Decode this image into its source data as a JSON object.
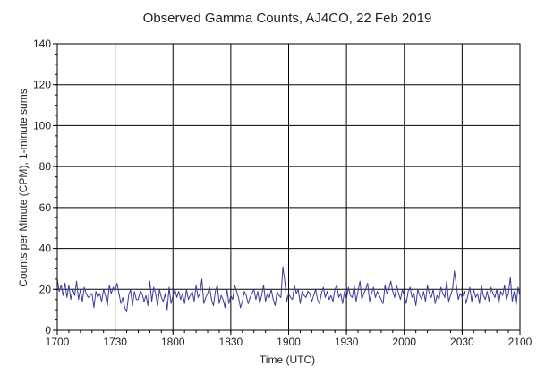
{
  "chart_data": {
    "type": "line",
    "title": "Observed Gamma Counts, AJ4CO, 22 Feb 2019",
    "xlabel": "Time (UTC)",
    "ylabel": "Counts per Minute (CPM), 1-minute sums",
    "xlim": [
      0,
      240
    ],
    "ylim": [
      0,
      140
    ],
    "x_ticks": [
      {
        "x": 0,
        "label": "1700"
      },
      {
        "x": 30,
        "label": "1730"
      },
      {
        "x": 60,
        "label": "1800"
      },
      {
        "x": 90,
        "label": "1830"
      },
      {
        "x": 120,
        "label": "1900"
      },
      {
        "x": 150,
        "label": "1930"
      },
      {
        "x": 180,
        "label": "2000"
      },
      {
        "x": 210,
        "label": "2030"
      },
      {
        "x": 240,
        "label": "2100"
      }
    ],
    "y_ticks": [
      0,
      20,
      40,
      60,
      80,
      100,
      120,
      140
    ],
    "grid": true,
    "colors": {
      "series": "#3a3a9c",
      "grid": "#000000",
      "minor_tick": "#000000"
    },
    "series": [
      {
        "values": [
          25,
          19,
          22,
          17,
          23,
          16,
          22,
          15,
          20,
          17,
          24,
          15,
          20,
          14,
          21,
          18,
          16,
          17,
          18,
          11,
          19,
          16,
          18,
          14,
          20,
          17,
          12,
          22,
          18,
          21,
          19,
          23,
          18,
          13,
          16,
          11,
          9,
          17,
          20,
          12,
          19,
          15,
          15,
          19,
          18,
          14,
          17,
          12,
          24,
          14,
          21,
          18,
          12,
          20,
          16,
          14,
          18,
          10,
          21,
          13,
          17,
          20,
          16,
          19,
          15,
          18,
          13,
          20,
          15,
          17,
          19,
          14,
          22,
          16,
          18,
          25,
          13,
          16,
          18,
          21,
          15,
          12,
          19,
          22,
          13,
          17,
          15,
          11,
          20,
          13,
          17,
          15,
          22,
          19,
          16,
          11,
          14,
          19,
          17,
          13,
          16,
          18,
          20,
          15,
          19,
          13,
          17,
          22,
          14,
          18,
          16,
          20,
          15,
          12,
          19,
          17,
          16,
          31,
          24,
          14,
          18,
          16,
          15,
          22,
          18,
          20,
          13,
          19,
          17,
          16,
          19,
          18,
          14,
          17,
          20,
          15,
          13,
          18,
          21,
          16,
          19,
          15,
          17,
          14,
          20,
          22,
          16,
          18,
          13,
          19,
          15,
          21,
          17,
          16,
          22,
          14,
          19,
          24,
          15,
          18,
          20,
          23,
          14,
          18,
          21,
          16,
          19,
          17,
          15,
          13,
          22,
          18,
          20,
          24,
          19,
          16,
          22,
          18,
          15,
          20,
          17,
          13,
          19,
          21,
          16,
          18,
          12,
          20,
          17,
          15,
          19,
          14,
          22,
          18,
          16,
          20,
          13,
          17,
          15,
          21,
          18,
          16,
          24,
          14,
          17,
          20,
          29,
          22,
          15,
          18,
          16,
          19,
          13,
          17,
          21,
          14,
          20,
          16,
          18,
          13,
          22,
          17,
          15,
          19,
          14,
          21,
          18,
          16,
          20,
          13,
          19,
          17,
          22,
          15,
          18,
          26,
          14,
          19,
          12,
          21,
          17
        ]
      }
    ]
  }
}
